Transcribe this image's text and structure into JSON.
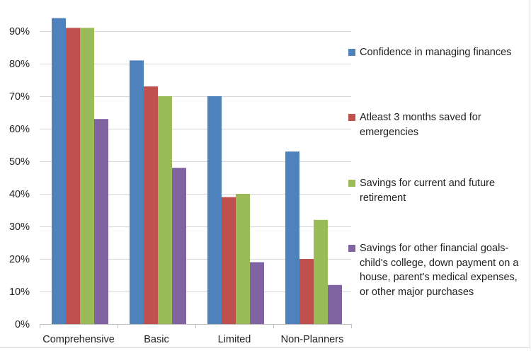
{
  "chart_data": {
    "type": "bar",
    "categories": [
      "Comprehensive",
      "Basic",
      "Limited",
      "Non-Planners"
    ],
    "series": [
      {
        "name": "Confidence in managing finances",
        "values": [
          94,
          81,
          70,
          53
        ],
        "color": "#4f81bd"
      },
      {
        "name": "Atleast 3 months saved for emergencies",
        "values": [
          91,
          73,
          39,
          20
        ],
        "color": "#c0504d"
      },
      {
        "name": "Savings for current and future retirement",
        "values": [
          91,
          70,
          40,
          32
        ],
        "color": "#9bbb59"
      },
      {
        "name": "Savings for other financial goals- child's college, down payment on a house, parent's medical expenses, or other major purchases",
        "values": [
          63,
          48,
          19,
          12
        ],
        "color": "#8064a2"
      }
    ],
    "y_ticks": [
      "0%",
      "10%",
      "20%",
      "30%",
      "40%",
      "50%",
      "60%",
      "70%",
      "80%",
      "90%"
    ],
    "ylim": [
      0,
      100
    ],
    "y_unit": "%",
    "grid": true,
    "legend_position": "right",
    "title": "",
    "xlabel": "",
    "ylabel": ""
  }
}
